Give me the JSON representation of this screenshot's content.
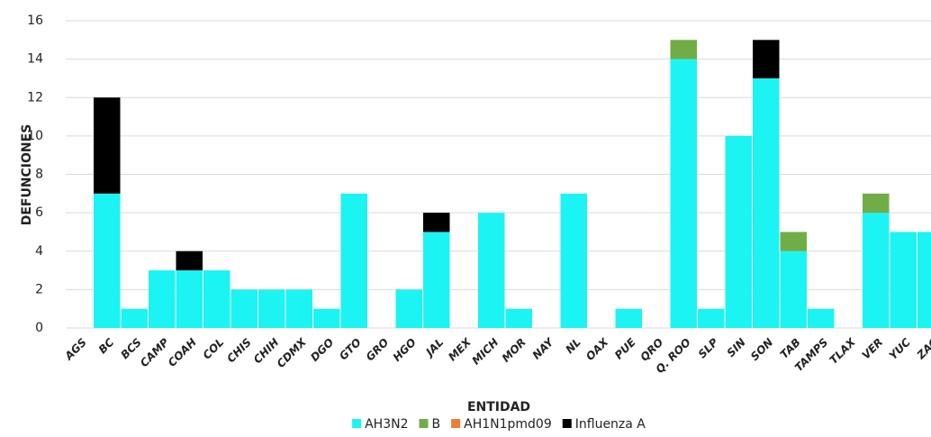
{
  "chart_data": {
    "type": "stacked_bar",
    "x_label": "ENTIDAD",
    "y_label": "DEFUNCIONES",
    "categories": [
      "AGS",
      "BC",
      "BCS",
      "CAMP",
      "COAH",
      "COL",
      "CHIS",
      "CHIH",
      "CDMX",
      "DGO",
      "GTO",
      "GRO",
      "HGO",
      "JAL",
      "MEX",
      "MICH",
      "MOR",
      "NAY",
      "NL",
      "OAX",
      "PUE",
      "QRO",
      "Q. ROO",
      "SLP",
      "SIN",
      "SON",
      "TAB",
      "TAMPS",
      "TLAX",
      "VER",
      "YUC",
      "ZAC"
    ],
    "series": [
      {
        "name": "AH3N2",
        "color": "#1cf3f3",
        "values": [
          0,
          7,
          1,
          3,
          3,
          3,
          2,
          2,
          2,
          1,
          7,
          0,
          2,
          5,
          0,
          6,
          1,
          0,
          7,
          0,
          1,
          0,
          14,
          1,
          10,
          13,
          4,
          1,
          0,
          6,
          5,
          5
        ]
      },
      {
        "name": "B",
        "color": "#70ad47",
        "values": [
          0,
          0,
          0,
          0,
          0,
          0,
          0,
          0,
          0,
          0,
          0,
          0,
          0,
          0,
          0,
          0,
          0,
          0,
          0,
          0,
          0,
          0,
          1,
          0,
          0,
          0,
          1,
          0,
          0,
          1,
          0,
          0
        ]
      },
      {
        "name": "AH1N1pmd09",
        "color": "#ed7d31",
        "values": [
          0,
          0,
          0,
          0,
          0,
          0,
          0,
          0,
          0,
          0,
          0,
          0,
          0,
          0,
          0,
          0,
          0,
          0,
          0,
          0,
          0,
          0,
          0,
          0,
          0,
          0,
          0,
          0,
          0,
          0,
          0,
          0
        ]
      },
      {
        "name": "Influenza A",
        "color": "#000000",
        "values": [
          0,
          5,
          0,
          0,
          1,
          0,
          0,
          0,
          0,
          0,
          0,
          0,
          0,
          1,
          0,
          0,
          0,
          0,
          0,
          0,
          0,
          0,
          0,
          0,
          0,
          2,
          0,
          0,
          0,
          0,
          0,
          0
        ]
      }
    ],
    "ylim": [
      0,
      16
    ],
    "yticks": [
      0,
      2,
      4,
      6,
      8,
      10,
      12,
      14,
      16
    ],
    "grid": true,
    "legend": "bottom"
  }
}
